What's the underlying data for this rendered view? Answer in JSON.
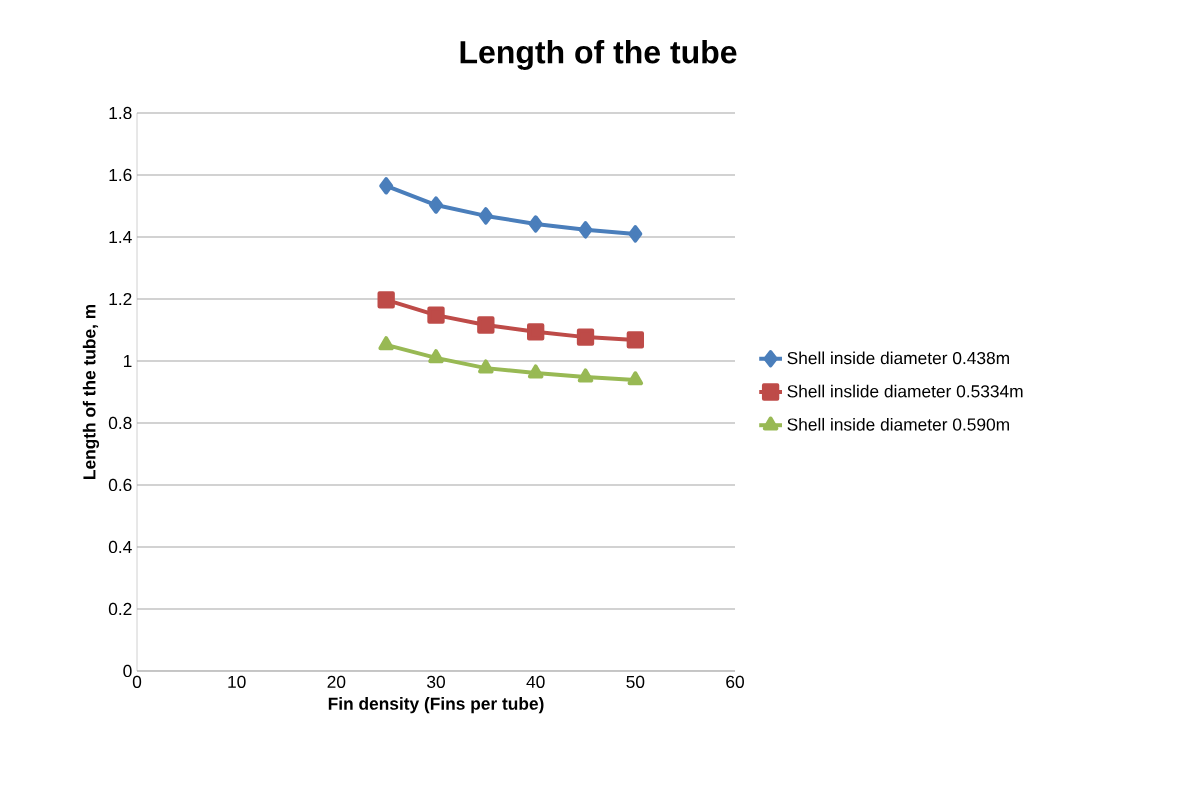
{
  "chart_data": {
    "type": "line",
    "title": "Length of the tube",
    "xlabel": "Fin density (Fins per tube)",
    "ylabel": "Length of the tube, m",
    "x": [
      25,
      30,
      35,
      40,
      45,
      50
    ],
    "series": [
      {
        "name": "Shell inside diameter 0.438m",
        "color": "#4a7ebb",
        "marker": "diamond",
        "values": [
          1.565,
          1.503,
          1.468,
          1.442,
          1.423,
          1.41
        ]
      },
      {
        "name": "Shell inslide diameter 0.5334m",
        "color": "#be4b48",
        "marker": "square",
        "values": [
          1.197,
          1.148,
          1.116,
          1.094,
          1.077,
          1.068
        ]
      },
      {
        "name": "Shell inside diameter 0.590m",
        "color": "#98b954",
        "marker": "triangle",
        "values": [
          1.052,
          1.01,
          0.977,
          0.961,
          0.948,
          0.939
        ]
      }
    ],
    "xlim": [
      0,
      60
    ],
    "xticks": [
      0,
      10,
      20,
      30,
      40,
      50,
      60
    ],
    "ylim": [
      0,
      1.8
    ],
    "yticks": [
      0,
      0.2,
      0.4,
      0.6,
      0.8,
      1,
      1.2,
      1.4,
      1.6,
      1.8
    ],
    "grid": "y",
    "legend": "right"
  }
}
